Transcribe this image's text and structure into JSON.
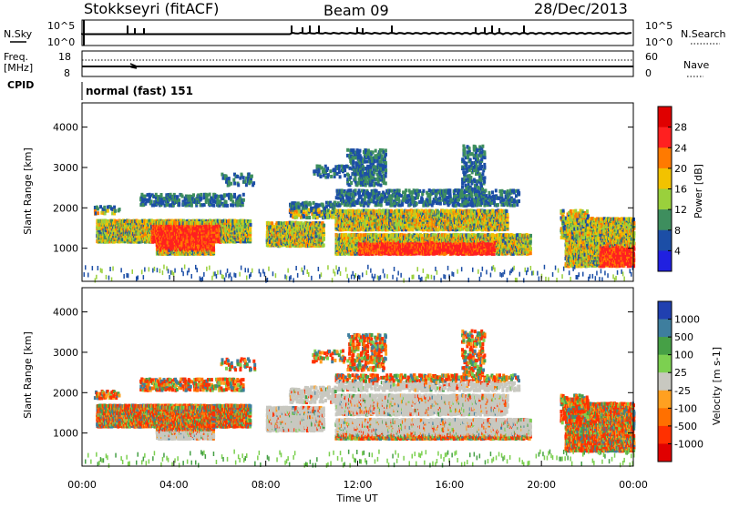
{
  "header": {
    "title": "Stokkseyri (fitACF)",
    "beam": "Beam 09",
    "date": "28/Dec/2013"
  },
  "noise_panel": {
    "left_label": "N.Sky",
    "right_label": "N.Search",
    "left_ticks": [
      "10^5",
      "10^0"
    ],
    "right_ticks": [
      "10^5",
      "10^0"
    ]
  },
  "freq_panel": {
    "left_label_1": "Freq.",
    "left_label_2": "[MHz]",
    "left_ticks": [
      "18",
      "8"
    ],
    "right_label": "Nave",
    "right_ticks": [
      "60",
      "0"
    ],
    "cpid_label": "CPID",
    "cpid_value": "normal (fast) 151"
  },
  "chart_data": [
    {
      "type": "heatmap",
      "quantity": "Power",
      "ylabel": "Slant Range [km]",
      "yticks": [
        1000,
        2000,
        3000,
        4000
      ],
      "ylim": [
        180,
        4600
      ],
      "xlim": [
        0,
        24
      ],
      "colorbar": {
        "label": "Power [dB]",
        "ticks": [
          "28",
          "24",
          "20",
          "16",
          "12",
          "8",
          "4"
        ],
        "colors": [
          "#e00000",
          "#ff2020",
          "#ff7a00",
          "#f2c200",
          "#9ad03c",
          "#3e8e5e",
          "#1c4ea6",
          "#2020e0"
        ]
      }
    },
    {
      "type": "heatmap",
      "quantity": "Velocity",
      "ylabel": "Slant Range [km]",
      "yticks": [
        1000,
        2000,
        3000,
        4000
      ],
      "ylim": [
        180,
        4600
      ],
      "xlim": [
        0,
        24
      ],
      "xlabel": "Time UT",
      "xticks": [
        "00:00",
        "04:00",
        "08:00",
        "12:00",
        "16:00",
        "20:00",
        "00:00"
      ],
      "colorbar": {
        "label": "Velocity [m s-1]",
        "ticks": [
          "1000",
          "500",
          "100",
          "25",
          "-25",
          "-100",
          "-500",
          "-1000"
        ],
        "colors": [
          "#2040b0",
          "#3e7e9e",
          "#46a046",
          "#7cd050",
          "#c8c8c0",
          "#ffa020",
          "#ff7000",
          "#ff3000",
          "#e00000"
        ]
      }
    }
  ]
}
